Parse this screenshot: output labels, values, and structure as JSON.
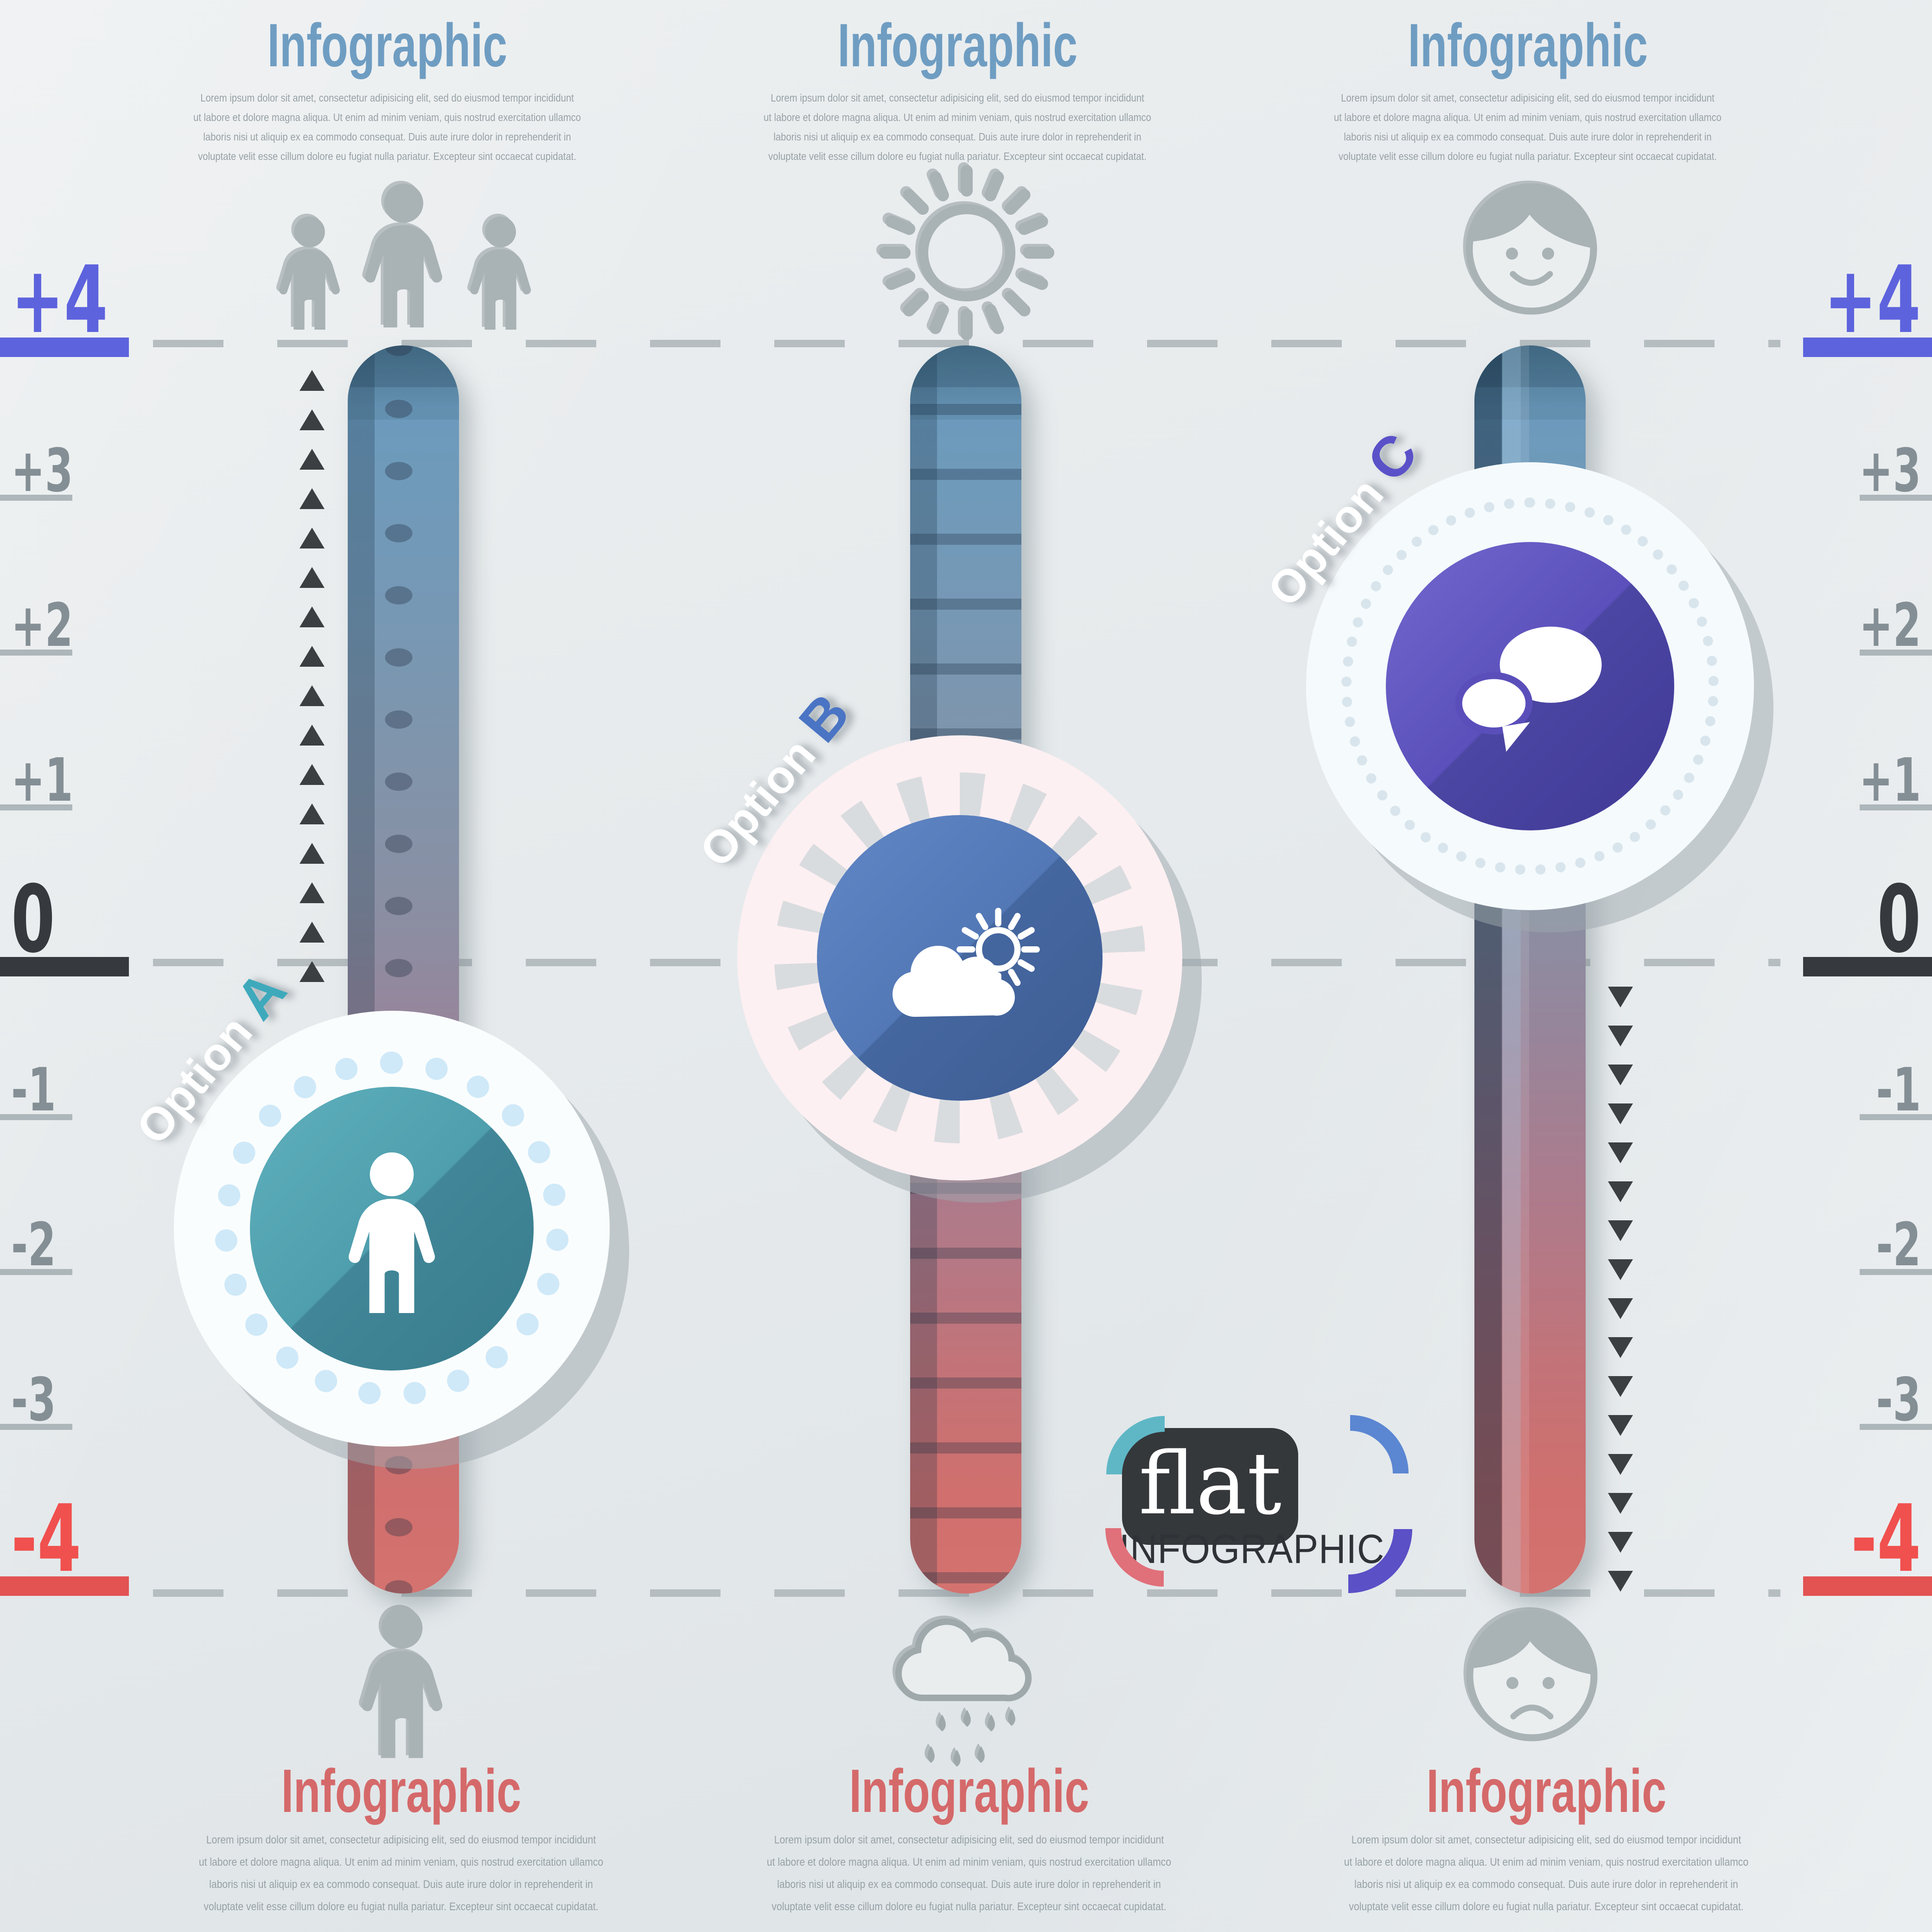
{
  "page": {
    "background": "#e7ebec"
  },
  "scale": {
    "labels": [
      "+4",
      "+3",
      "+2",
      "+1",
      "0",
      "-1",
      "-2",
      "-3",
      "-4"
    ],
    "colors": {
      "positive_max": "#5d63dd",
      "neutral": "#848f95",
      "zero": "#36393d",
      "negative_max": "#f0504e",
      "underline_gray": "#adb6ba",
      "dash_gray": "#b5bdc0"
    }
  },
  "shared": {
    "lorem_lines": [
      "Lorem ipsum dolor sit amet, consectetur adipisicing elit, sed do eiusmod tempor incididunt",
      "ut labore et dolore magna aliqua. Ut enim ad minim veniam, quis nostrud exercitation ullamco",
      "laboris nisi ut aliquip ex ea commodo consequat. Duis aute irure dolor in reprehenderit in",
      "voluptate velit esse cillum dolore eu fugiat nulla pariatur. Excepteur sint occaecat cupidatat."
    ]
  },
  "titles": {
    "top_color": "#6f9dc2",
    "bottom_color": "#d5696a"
  },
  "columns": [
    {
      "top_title": "Infographic",
      "bottom_title": "Infographic",
      "option_word": "Option",
      "option_letter": "A",
      "option_letter_color": "#3fa9bc",
      "badge_color": "#4f9fae",
      "top_icon": "people-group-icon",
      "badge_icon": "person-icon",
      "bottom_icon": "person-icon"
    },
    {
      "top_title": "Infographic",
      "bottom_title": "Infographic",
      "option_word": "Option",
      "option_letter": "B",
      "option_letter_color": "#4a74c4",
      "badge_color": "#5378b6",
      "top_icon": "sun-icon",
      "badge_icon": "cloud-sun-icon",
      "bottom_icon": "rain-cloud-icon"
    },
    {
      "top_title": "Infographic",
      "bottom_title": "Infographic",
      "option_word": "Option",
      "option_letter": "C",
      "option_letter_color": "#5a51c9",
      "badge_color": "#5b50bb",
      "top_icon": "happy-face-icon",
      "badge_icon": "chat-bubbles-icon",
      "bottom_icon": "sad-face-icon"
    }
  ],
  "logo": {
    "name": "flat",
    "subtitle": "INFOGRAPHIC"
  },
  "decor": {
    "up_triangle_count": 16,
    "down_triangle_count": 16
  }
}
